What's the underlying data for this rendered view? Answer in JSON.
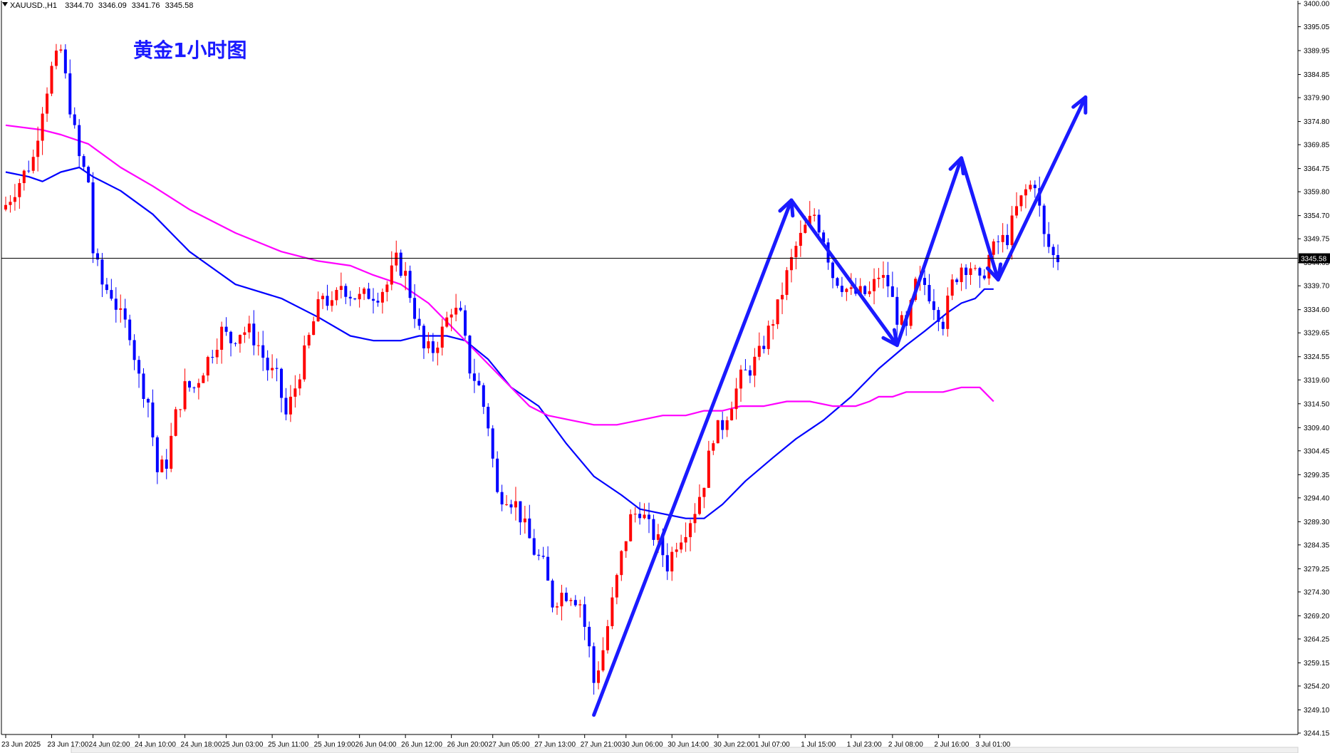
{
  "header": {
    "symbol": "XAUUSD.,H1",
    "open": "3344.70",
    "high": "3346.09",
    "low": "3341.76",
    "close": "3345.58"
  },
  "chart_title": "黄金1小时图",
  "price_label": "3345.58",
  "colors": {
    "background": "#ffffff",
    "bull": "#ff0000",
    "bear": "#0000ff",
    "ma_fast": "#0000ff",
    "ma_slow": "#ff00ff",
    "arrows": "#1a1aff",
    "title": "#1a1aff",
    "frame": "#000000"
  },
  "chart_data": {
    "type": "candlestick",
    "title": "黄金1小时图",
    "ylim": [
      3244.15,
      3400.0
    ],
    "y_ticks": [
      "3400.00",
      "3395.05",
      "3389.95",
      "3384.85",
      "3379.90",
      "3374.80",
      "3369.85",
      "3364.75",
      "3359.80",
      "3354.70",
      "3349.75",
      "3344.65",
      "3339.70",
      "3334.60",
      "3329.65",
      "3324.55",
      "3319.60",
      "3314.50",
      "3309.40",
      "3304.45",
      "3299.35",
      "3294.40",
      "3289.30",
      "3284.35",
      "3279.25",
      "3274.30",
      "3269.20",
      "3264.25",
      "3259.15",
      "3254.20",
      "3249.10",
      "3244.15"
    ],
    "x_ticks": [
      {
        "label": "23 Jun 2025",
        "index": 0
      },
      {
        "label": "23 Jun 17:00",
        "index": 10
      },
      {
        "label": "24 Jun 02:00",
        "index": 19
      },
      {
        "label": "24 Jun 10:00",
        "index": 29
      },
      {
        "label": "24 Jun 18:00",
        "index": 39
      },
      {
        "label": "25 Jun 03:00",
        "index": 48
      },
      {
        "label": "25 Jun 11:00",
        "index": 58
      },
      {
        "label": "25 Jun 19:00",
        "index": 68
      },
      {
        "label": "26 Jun 04:00",
        "index": 77
      },
      {
        "label": "26 Jun 12:00",
        "index": 87
      },
      {
        "label": "26 Jun 20:00",
        "index": 97
      },
      {
        "label": "27 Jun 05:00",
        "index": 106
      },
      {
        "label": "27 Jun 13:00",
        "index": 116
      },
      {
        "label": "27 Jun 21:00",
        "index": 126
      },
      {
        "label": "30 Jun 06:00",
        "index": 135
      },
      {
        "label": "30 Jun 14:00",
        "index": 145
      },
      {
        "label": "30 Jun 22:00",
        "index": 155
      },
      {
        "label": "1 Jul 07:00",
        "index": 164
      },
      {
        "label": "1 Jul 15:00",
        "index": 174
      },
      {
        "label": "1 Jul 23:00",
        "index": 184
      },
      {
        "label": "2 Jul 08:00",
        "index": 193
      },
      {
        "label": "2 Jul 16:00",
        "index": 203
      },
      {
        "label": "3 Jul 01:00",
        "index": 212
      }
    ],
    "close_path": [
      [
        0,
        3357
      ],
      [
        3,
        3362
      ],
      [
        6,
        3367
      ],
      [
        8,
        3378
      ],
      [
        10,
        3386
      ],
      [
        12,
        3390
      ],
      [
        14,
        3378
      ],
      [
        16,
        3367
      ],
      [
        18,
        3362
      ],
      [
        19,
        3347
      ],
      [
        21,
        3340
      ],
      [
        23,
        3338
      ],
      [
        25,
        3333
      ],
      [
        27,
        3330
      ],
      [
        29,
        3320
      ],
      [
        31,
        3315
      ],
      [
        33,
        3300
      ],
      [
        35,
        3302
      ],
      [
        37,
        3312
      ],
      [
        39,
        3318
      ],
      [
        41,
        3318
      ],
      [
        43,
        3322
      ],
      [
        45,
        3326
      ],
      [
        47,
        3330
      ],
      [
        49,
        3328
      ],
      [
        51,
        3330
      ],
      [
        53,
        3330
      ],
      [
        55,
        3327
      ],
      [
        57,
        3322
      ],
      [
        59,
        3320
      ],
      [
        61,
        3312
      ],
      [
        63,
        3318
      ],
      [
        65,
        3325
      ],
      [
        67,
        3332
      ],
      [
        69,
        3338
      ],
      [
        71,
        3335
      ],
      [
        73,
        3340
      ],
      [
        75,
        3338
      ],
      [
        77,
        3337
      ],
      [
        79,
        3338
      ],
      [
        81,
        3338
      ],
      [
        83,
        3340
      ],
      [
        85,
        3345
      ],
      [
        87,
        3342
      ],
      [
        89,
        3334
      ],
      [
        91,
        3326
      ],
      [
        93,
        3326
      ],
      [
        95,
        3330
      ],
      [
        97,
        3335
      ],
      [
        99,
        3333
      ],
      [
        101,
        3322
      ],
      [
        103,
        3318
      ],
      [
        105,
        3310
      ],
      [
        107,
        3295
      ],
      [
        109,
        3295
      ],
      [
        111,
        3293
      ],
      [
        113,
        3288
      ],
      [
        115,
        3283
      ],
      [
        117,
        3280
      ],
      [
        119,
        3272
      ],
      [
        121,
        3274
      ],
      [
        123,
        3274
      ],
      [
        125,
        3272
      ],
      [
        127,
        3262
      ],
      [
        128,
        3255
      ],
      [
        130,
        3262
      ],
      [
        132,
        3272
      ],
      [
        134,
        3282
      ],
      [
        136,
        3290
      ],
      [
        138,
        3292
      ],
      [
        140,
        3288
      ],
      [
        142,
        3285
      ],
      [
        144,
        3280
      ],
      [
        146,
        3285
      ],
      [
        148,
        3288
      ],
      [
        150,
        3292
      ],
      [
        152,
        3298
      ],
      [
        154,
        3308
      ],
      [
        156,
        3310
      ],
      [
        158,
        3315
      ],
      [
        160,
        3320
      ],
      [
        162,
        3322
      ],
      [
        164,
        3325
      ],
      [
        166,
        3330
      ],
      [
        168,
        3335
      ],
      [
        170,
        3342
      ],
      [
        172,
        3348
      ],
      [
        174,
        3352
      ],
      [
        176,
        3355
      ],
      [
        178,
        3350
      ],
      [
        180,
        3342
      ],
      [
        182,
        3340
      ],
      [
        184,
        3338
      ],
      [
        186,
        3338
      ],
      [
        188,
        3338
      ],
      [
        190,
        3342
      ],
      [
        192,
        3340
      ],
      [
        194,
        3333
      ],
      [
        196,
        3330
      ],
      [
        198,
        3340
      ],
      [
        200,
        3340
      ],
      [
        202,
        3336
      ],
      [
        204,
        3332
      ],
      [
        206,
        3340
      ],
      [
        208,
        3344
      ],
      [
        210,
        3344
      ],
      [
        212,
        3340
      ],
      [
        214,
        3346
      ],
      [
        216,
        3349
      ],
      [
        218,
        3350
      ],
      [
        220,
        3356
      ],
      [
        222,
        3360
      ],
      [
        224,
        3362
      ],
      [
        226,
        3350
      ],
      [
        228,
        3346
      ],
      [
        229,
        3345.58
      ]
    ],
    "series": [
      {
        "name": "",
        "style": "ma_fast",
        "points": [
          [
            0,
            3364
          ],
          [
            5,
            3363
          ],
          [
            8,
            3362
          ],
          [
            12,
            3364
          ],
          [
            16,
            3365
          ],
          [
            19,
            3363
          ],
          [
            25,
            3360
          ],
          [
            32,
            3355
          ],
          [
            40,
            3347
          ],
          [
            50,
            3340
          ],
          [
            60,
            3337
          ],
          [
            68,
            3333
          ],
          [
            75,
            3329
          ],
          [
            80,
            3328
          ],
          [
            86,
            3328
          ],
          [
            90,
            3329
          ],
          [
            96,
            3329
          ],
          [
            100,
            3328
          ],
          [
            105,
            3324
          ],
          [
            110,
            3318
          ],
          [
            116,
            3314
          ],
          [
            122,
            3306
          ],
          [
            128,
            3299
          ],
          [
            134,
            3295
          ],
          [
            138,
            3292
          ],
          [
            143,
            3291
          ],
          [
            148,
            3290
          ],
          [
            152,
            3290
          ],
          [
            156,
            3293
          ],
          [
            161,
            3298
          ],
          [
            167,
            3303
          ],
          [
            172,
            3307
          ],
          [
            178,
            3311
          ],
          [
            184,
            3316
          ],
          [
            190,
            3322
          ],
          [
            196,
            3327
          ],
          [
            200,
            3330
          ],
          [
            205,
            3334
          ],
          [
            208,
            3336
          ],
          [
            211,
            3337
          ],
          [
            213,
            3339
          ],
          [
            215,
            3339
          ]
        ]
      },
      {
        "name": "",
        "style": "ma_slow",
        "points": [
          [
            0,
            3374
          ],
          [
            8,
            3373
          ],
          [
            12,
            3372
          ],
          [
            18,
            3370
          ],
          [
            25,
            3365
          ],
          [
            32,
            3361
          ],
          [
            40,
            3356
          ],
          [
            50,
            3351
          ],
          [
            60,
            3347
          ],
          [
            68,
            3345
          ],
          [
            75,
            3344
          ],
          [
            80,
            3342
          ],
          [
            86,
            3340
          ],
          [
            92,
            3336
          ],
          [
            98,
            3330
          ],
          [
            104,
            3324
          ],
          [
            110,
            3318
          ],
          [
            114,
            3314
          ],
          [
            118,
            3312
          ],
          [
            123,
            3311
          ],
          [
            128,
            3310
          ],
          [
            133,
            3310
          ],
          [
            138,
            3311
          ],
          [
            143,
            3312
          ],
          [
            148,
            3312
          ],
          [
            152,
            3313
          ],
          [
            156,
            3313
          ],
          [
            160,
            3314
          ],
          [
            165,
            3314
          ],
          [
            170,
            3315
          ],
          [
            175,
            3315
          ],
          [
            180,
            3314
          ],
          [
            185,
            3314
          ],
          [
            188,
            3315
          ],
          [
            190,
            3316
          ],
          [
            193,
            3316
          ],
          [
            196,
            3317
          ],
          [
            200,
            3317
          ],
          [
            204,
            3317
          ],
          [
            208,
            3318
          ],
          [
            212,
            3318
          ],
          [
            215,
            3315
          ]
        ]
      }
    ],
    "arrows": [
      {
        "from": [
          128,
          3248
        ],
        "to": [
          171,
          3358
        ]
      },
      {
        "from": [
          171,
          3358
        ],
        "to": [
          194,
          3327
        ]
      },
      {
        "from": [
          194,
          3327
        ],
        "to": [
          208,
          3367
        ]
      },
      {
        "from": [
          208,
          3367
        ],
        "to": [
          216,
          3341
        ]
      },
      {
        "from": [
          216,
          3341
        ],
        "to": [
          235,
          3380
        ]
      }
    ]
  }
}
